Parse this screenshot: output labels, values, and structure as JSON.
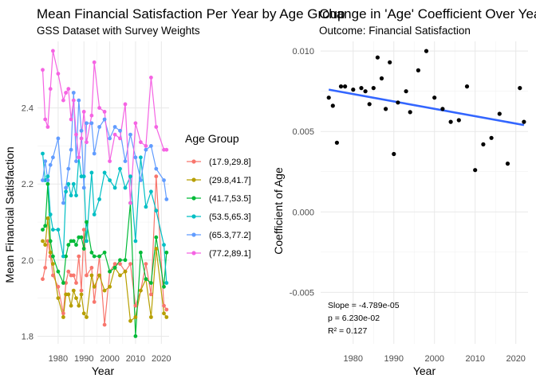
{
  "chart_data": [
    {
      "type": "line",
      "title": "Mean Financial Satisfaction Per Year by Age Group",
      "subtitle": "GSS Dataset with Survey Weights",
      "xlabel": "Year",
      "ylabel": "Mean Financial Satisfaction",
      "xlim": [
        1972,
        2023
      ],
      "ylim": [
        1.78,
        2.575
      ],
      "xticks": [
        1980,
        1990,
        2000,
        2010,
        2020
      ],
      "yticks": [
        1.8,
        2.0,
        2.2,
        2.4
      ],
      "grid": true,
      "legend_title": "Age Group",
      "legend_position": "right",
      "x": [
        1974,
        1975,
        1976,
        1977,
        1978,
        1980,
        1982,
        1983,
        1984,
        1985,
        1986,
        1987,
        1988,
        1989,
        1990,
        1991,
        1993,
        1994,
        1996,
        1998,
        2000,
        2002,
        2004,
        2006,
        2008,
        2010,
        2012,
        2014,
        2016,
        2018,
        2021,
        2022
      ],
      "series": [
        {
          "name": "(17.9,29.8]",
          "color": "#F8766D",
          "values": [
            1.95,
            1.98,
            2.05,
            2.01,
            1.96,
            1.93,
            1.86,
            1.94,
            1.97,
            1.96,
            1.96,
            1.94,
            2.01,
            1.92,
            2.08,
            1.96,
            1.98,
            1.89,
            2.01,
            1.83,
            1.97,
            1.99,
            1.99,
            1.97,
            1.99,
            1.88,
            1.92,
            1.99,
            1.91,
            2.22,
            1.88,
            1.87
          ]
        },
        {
          "name": "(29.8,41.7]",
          "color": "#B79F00",
          "values": [
            2.05,
            2.04,
            2.11,
            2.02,
            1.99,
            1.9,
            1.85,
            1.91,
            1.91,
            1.88,
            1.92,
            1.9,
            1.88,
            1.91,
            1.86,
            1.85,
            1.96,
            1.93,
            1.96,
            1.92,
            1.93,
            1.98,
            1.96,
            1.97,
            1.84,
            1.85,
            1.92,
            1.95,
            1.85,
            2.03,
            1.86,
            1.85
          ]
        },
        {
          "name": "(41.7,53.5]",
          "color": "#00BA38",
          "values": [
            2.08,
            2.09,
            2.2,
            2.05,
            2.01,
            1.97,
            1.94,
            2.01,
            2.04,
            2.05,
            2.05,
            2.04,
            2.06,
            2.06,
            2.03,
            2.1,
            2.02,
            2.01,
            2.01,
            2.02,
            1.97,
            1.98,
            2.0,
            2.0,
            2.15,
            1.8,
            2.02,
            1.95,
            1.94,
            2.06,
            1.93,
            2.02
          ]
        },
        {
          "name": "(53.5,65.3]",
          "color": "#00BFC4",
          "values": [
            2.28,
            2.21,
            2.22,
            2.12,
            2.08,
            2.08,
            2.01,
            2.18,
            2.2,
            2.17,
            2.2,
            2.17,
            2.27,
            2.22,
            2.22,
            2.05,
            2.23,
            2.12,
            2.16,
            2.23,
            2.21,
            2.19,
            2.24,
            2.19,
            2.22,
            2.05,
            2.27,
            2.14,
            2.18,
            2.13,
            2.04,
            1.94
          ]
        },
        {
          "name": "(65.3,77.2]",
          "color": "#619CFF",
          "values": [
            2.21,
            2.26,
            2.21,
            2.25,
            2.27,
            2.32,
            2.15,
            2.19,
            2.24,
            2.29,
            2.44,
            2.26,
            2.42,
            2.34,
            2.19,
            2.36,
            2.36,
            2.28,
            2.35,
            2.37,
            2.32,
            2.35,
            2.34,
            2.26,
            2.33,
            2.27,
            2.21,
            2.29,
            2.3,
            2.24,
            2.21,
            2.16
          ]
        },
        {
          "name": "(77.2,89.1]",
          "color": "#F564E3",
          "values": [
            2.5,
            2.37,
            2.35,
            2.45,
            2.55,
            2.49,
            2.42,
            2.44,
            2.45,
            2.37,
            2.42,
            2.33,
            2.27,
            2.32,
            2.39,
            2.31,
            2.38,
            2.52,
            2.4,
            2.39,
            2.26,
            2.33,
            2.32,
            2.41,
            2.15,
            2.36,
            2.31,
            2.3,
            2.48,
            2.35,
            2.29,
            2.29
          ]
        }
      ]
    },
    {
      "type": "scatter",
      "title": "Change in 'Age' Coefficient Over Years",
      "subtitle": "Outcome: Financial Satisfaction",
      "xlabel": "Year",
      "ylabel": "Coefficient of Age",
      "xlim": [
        1972,
        2023
      ],
      "ylim": [
        -0.0082,
        0.0106
      ],
      "xticks": [
        1980,
        1990,
        2000,
        2010,
        2020
      ],
      "yticks": [
        -0.005,
        0.0,
        0.005,
        0.01
      ],
      "ytick_labels": [
        "-0.005",
        "0.000",
        "0.005",
        "0.010"
      ],
      "grid": true,
      "point_color": "#000000",
      "trend_color": "#3366FF",
      "trend": {
        "x": [
          1974,
          2022
        ],
        "y": [
          0.0076,
          0.0054
        ]
      },
      "points": {
        "x": [
          1974,
          1975,
          1976,
          1977,
          1978,
          1980,
          1982,
          1983,
          1984,
          1985,
          1986,
          1987,
          1988,
          1989,
          1990,
          1991,
          1993,
          1994,
          1996,
          1998,
          2000,
          2002,
          2004,
          2006,
          2008,
          2010,
          2012,
          2014,
          2016,
          2018,
          2021,
          2022
        ],
        "y": [
          0.0071,
          0.0066,
          0.0043,
          0.0078,
          0.0078,
          0.0076,
          0.0077,
          0.0075,
          0.0067,
          0.0077,
          0.0096,
          0.0083,
          0.0064,
          0.0093,
          0.0036,
          0.0068,
          0.0075,
          0.0062,
          0.0088,
          0.01,
          0.0071,
          0.0064,
          0.0056,
          0.0057,
          0.0078,
          0.0026,
          0.0042,
          0.0046,
          0.0061,
          0.003,
          0.0077,
          0.0056
        ]
      },
      "annotations": [
        "Slope = -4.789e-05",
        "p = 6.230e-02",
        "R² = 0.127"
      ]
    }
  ]
}
